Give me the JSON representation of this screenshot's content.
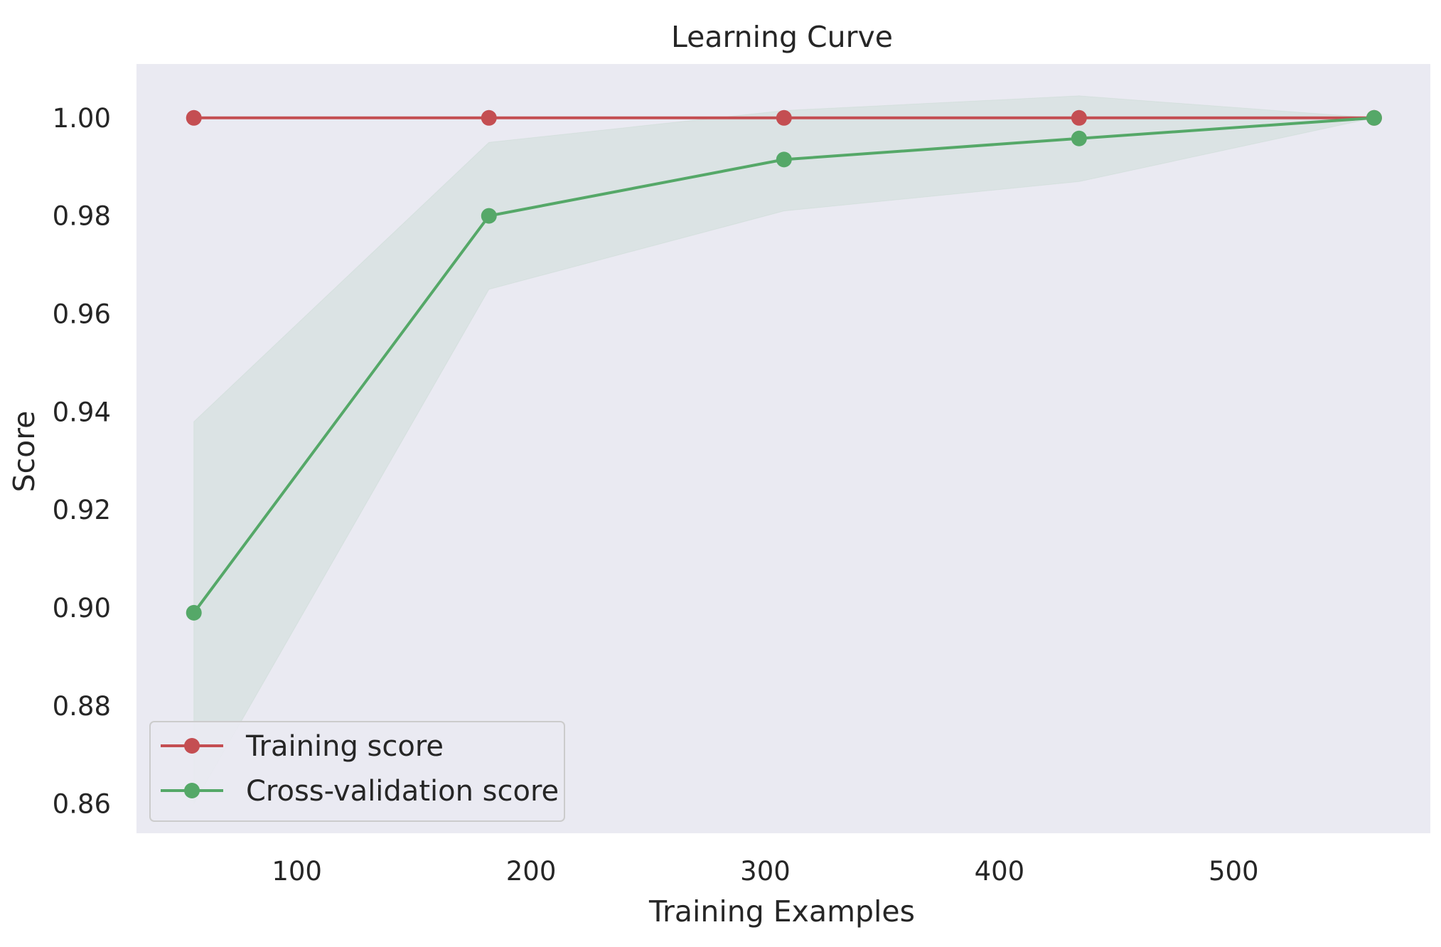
{
  "chart_data": {
    "type": "line",
    "title": "Learning Curve",
    "xlabel": "Training Examples",
    "ylabel": "Score",
    "xlim": [
      31.5,
      584
    ],
    "ylim": [
      0.854,
      1.011
    ],
    "x_ticks": [
      100,
      200,
      300,
      400,
      500
    ],
    "x_tick_labels": [
      "100",
      "200",
      "300",
      "400",
      "500"
    ],
    "y_ticks": [
      0.86,
      0.88,
      0.9,
      0.92,
      0.94,
      0.96,
      0.98,
      1.0
    ],
    "y_tick_labels": [
      "0.86",
      "0.88",
      "0.90",
      "0.92",
      "0.94",
      "0.96",
      "0.98",
      "1.00"
    ],
    "grid": false,
    "legend_position": "lower-left",
    "background": "#eaeaf2",
    "x": [
      56,
      182,
      308,
      434,
      560
    ],
    "series": [
      {
        "name": "Training score",
        "color": "#c44e52",
        "values": [
          1.0,
          1.0,
          1.0,
          1.0,
          1.0
        ],
        "band_lower": [
          1.0,
          1.0,
          1.0,
          1.0,
          1.0
        ],
        "band_upper": [
          1.0,
          1.0,
          1.0,
          1.0,
          1.0
        ]
      },
      {
        "name": "Cross-validation score",
        "color": "#55a868",
        "values": [
          0.899,
          0.98,
          0.9915,
          0.9958,
          1.0
        ],
        "band_lower": [
          0.86,
          0.965,
          0.981,
          0.987,
          1.0
        ],
        "band_upper": [
          0.938,
          0.995,
          1.0015,
          1.0045,
          1.0
        ]
      }
    ]
  }
}
